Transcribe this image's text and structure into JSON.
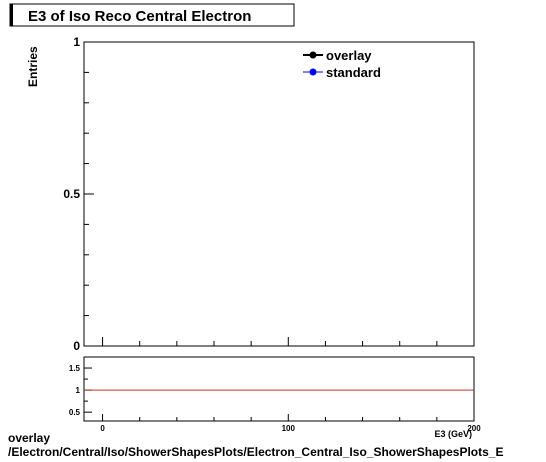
{
  "chart_data": [
    {
      "type": "line",
      "title": "E3 of Iso Reco Central  Electron",
      "ylabel": "Entries",
      "xlabel": "E3 (GeV)",
      "xlim": [
        -10,
        200
      ],
      "ylim": [
        0,
        1
      ],
      "ytick_labels": [
        "0",
        "0.5",
        "1"
      ],
      "legend": {
        "placement": "top-right",
        "entries": [
          "overlay",
          "standard"
        ]
      },
      "series": [
        {
          "name": "overlay",
          "color": "#000000",
          "marker": "circle",
          "values": []
        },
        {
          "name": "standard",
          "color": "#0000ff",
          "marker": "circle",
          "values": []
        }
      ],
      "grid": false
    },
    {
      "type": "line",
      "subplot": "ratio",
      "xlim": [
        -10,
        200
      ],
      "ylim": [
        0.3,
        1.75
      ],
      "xtick_labels": [
        "0",
        "100",
        "200"
      ],
      "ytick_labels": [
        "0.5",
        "1",
        "1.5"
      ],
      "reference_line": {
        "y": 1,
        "color": "#c0392b"
      },
      "grid": false
    }
  ],
  "footer": {
    "line1": "overlay",
    "line2": "/Electron/Central/Iso/ShowerShapesPlots/Electron_Central_Iso_ShowerShapesPlots_E"
  }
}
